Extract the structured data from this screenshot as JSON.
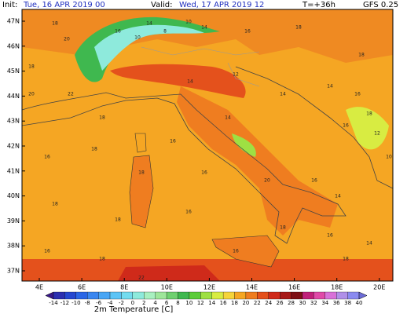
{
  "header": {
    "init_label": "Init:",
    "init": "Tue, 16 APR 2019  00",
    "valid_label": "Valid:",
    "valid": "Wed, 17 APR 2019  12",
    "lead": "T=+36h",
    "model": "GFS 0.25"
  },
  "lat_labels": [
    "47N",
    "46N",
    "45N",
    "44N",
    "43N",
    "42N",
    "41N",
    "40N",
    "39N",
    "38N",
    "37N"
  ],
  "lon_labels": [
    "4E",
    "6E",
    "8E",
    "10E",
    "12E",
    "14E",
    "16E",
    "18E",
    "20E"
  ],
  "map_labels": [
    18,
    20,
    18,
    16,
    14,
    10,
    8,
    10,
    14,
    16,
    18,
    18,
    14,
    16,
    18,
    20,
    22,
    18,
    14,
    12,
    14,
    16,
    12,
    10,
    16,
    18,
    16,
    14,
    20,
    16,
    18,
    16,
    14,
    18,
    18,
    16,
    18,
    16,
    14,
    16,
    18,
    22,
    16,
    18
  ],
  "colorbar": {
    "title": "2m Temperature [C]",
    "levels": [
      -14,
      -12,
      -10,
      -8,
      -6,
      -4,
      -2,
      0,
      2,
      4,
      6,
      8,
      10,
      12,
      14,
      16,
      18,
      20,
      22,
      24,
      26,
      28,
      30,
      32,
      34,
      36,
      38,
      40
    ],
    "colors": [
      "#3a1a8a",
      "#2c2fb0",
      "#2547d0",
      "#2a66e6",
      "#3a86f0",
      "#4aa6f5",
      "#5cc4f6",
      "#74dcef",
      "#8eeadc",
      "#a8f0c0",
      "#9ee69a",
      "#6fd070",
      "#3fb84f",
      "#5ccc3a",
      "#9ee043",
      "#d8ec42",
      "#f5d43a",
      "#f5a623",
      "#ef7d20",
      "#e4511c",
      "#cf2a1a",
      "#a71a18",
      "#7e1016",
      "#c0207a",
      "#e04aa8",
      "#d872d8",
      "#b090e8",
      "#8a8af0",
      "#6c6cd8"
    ]
  }
}
